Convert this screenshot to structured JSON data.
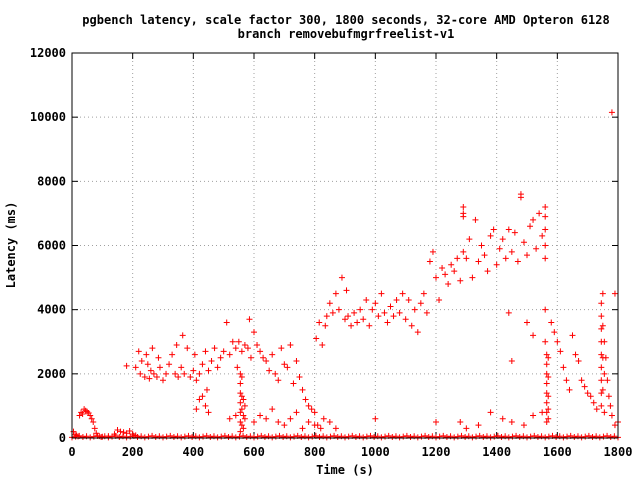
{
  "chart_data": {
    "type": "scatter",
    "title": "pgbench latency, scale factor 300, 1800 seconds, 32-core AMD Opteron 6128",
    "subtitle": "branch removebufmgrfreelist-v1",
    "xlabel": "Time (s)",
    "ylabel": "Latency (ms)",
    "xlim": [
      0,
      1800
    ],
    "ylim": [
      0,
      12000
    ],
    "xticks": [
      "0",
      "200",
      "400",
      "600",
      "800",
      "1000",
      "1200",
      "1400",
      "1600",
      "1800"
    ],
    "yticks": [
      "0",
      "2000",
      "4000",
      "6000",
      "8000",
      "10000",
      "12000"
    ],
    "grid": true,
    "marker": "+",
    "color": "#ff0000",
    "points": [
      [
        5,
        200
      ],
      [
        10,
        100
      ],
      [
        15,
        80
      ],
      [
        20,
        50
      ],
      [
        25,
        700
      ],
      [
        30,
        800
      ],
      [
        35,
        750
      ],
      [
        40,
        900
      ],
      [
        45,
        850
      ],
      [
        50,
        820
      ],
      [
        55,
        780
      ],
      [
        60,
        700
      ],
      [
        65,
        600
      ],
      [
        70,
        500
      ],
      [
        75,
        300
      ],
      [
        80,
        150
      ],
      [
        90,
        60
      ],
      [
        100,
        40
      ],
      [
        120,
        60
      ],
      [
        140,
        120
      ],
      [
        150,
        250
      ],
      [
        160,
        200
      ],
      [
        170,
        180
      ],
      [
        180,
        150
      ],
      [
        190,
        220
      ],
      [
        200,
        120
      ],
      [
        210,
        80
      ],
      [
        180,
        2250
      ],
      [
        210,
        2200
      ],
      [
        220,
        2700
      ],
      [
        225,
        2000
      ],
      [
        230,
        2400
      ],
      [
        240,
        1900
      ],
      [
        245,
        2600
      ],
      [
        250,
        2300
      ],
      [
        255,
        1850
      ],
      [
        260,
        2100
      ],
      [
        265,
        2800
      ],
      [
        270,
        2000
      ],
      [
        280,
        1900
      ],
      [
        285,
        2500
      ],
      [
        290,
        2200
      ],
      [
        300,
        1800
      ],
      [
        310,
        2000
      ],
      [
        320,
        2300
      ],
      [
        330,
        2600
      ],
      [
        340,
        2000
      ],
      [
        345,
        2900
      ],
      [
        350,
        1900
      ],
      [
        360,
        2200
      ],
      [
        365,
        3200
      ],
      [
        370,
        2000
      ],
      [
        380,
        2800
      ],
      [
        390,
        1900
      ],
      [
        400,
        2100
      ],
      [
        405,
        2600
      ],
      [
        410,
        1800
      ],
      [
        420,
        2000
      ],
      [
        430,
        2300
      ],
      [
        440,
        2700
      ],
      [
        445,
        1500
      ],
      [
        450,
        2100
      ],
      [
        460,
        2400
      ],
      [
        470,
        2800
      ],
      [
        480,
        2200
      ],
      [
        490,
        2500
      ],
      [
        500,
        2700
      ],
      [
        510,
        3600
      ],
      [
        520,
        2600
      ],
      [
        530,
        3000
      ],
      [
        540,
        2800
      ],
      [
        545,
        2200
      ],
      [
        550,
        3000
      ],
      [
        560,
        2700
      ],
      [
        570,
        2900
      ],
      [
        580,
        2800
      ],
      [
        585,
        3700
      ],
      [
        590,
        2500
      ],
      [
        600,
        3300
      ],
      [
        610,
        2900
      ],
      [
        620,
        2700
      ],
      [
        630,
        2500
      ],
      [
        640,
        2400
      ],
      [
        650,
        2100
      ],
      [
        660,
        2600
      ],
      [
        670,
        2000
      ],
      [
        680,
        1800
      ],
      [
        690,
        2800
      ],
      [
        700,
        2300
      ],
      [
        710,
        2200
      ],
      [
        720,
        2900
      ],
      [
        730,
        1700
      ],
      [
        740,
        2400
      ],
      [
        750,
        1900
      ],
      [
        760,
        1500
      ],
      [
        770,
        1200
      ],
      [
        780,
        1000
      ],
      [
        790,
        900
      ],
      [
        800,
        800
      ],
      [
        810,
        400
      ],
      [
        820,
        300
      ],
      [
        410,
        900
      ],
      [
        420,
        1200
      ],
      [
        430,
        1300
      ],
      [
        440,
        1000
      ],
      [
        450,
        800
      ],
      [
        520,
        600
      ],
      [
        540,
        700
      ],
      [
        555,
        200
      ],
      [
        555,
        500
      ],
      [
        555,
        800
      ],
      [
        555,
        1100
      ],
      [
        555,
        1400
      ],
      [
        555,
        1700
      ],
      [
        555,
        2000
      ],
      [
        560,
        400
      ],
      [
        560,
        900
      ],
      [
        560,
        1300
      ],
      [
        560,
        1900
      ],
      [
        565,
        300
      ],
      [
        565,
        700
      ],
      [
        565,
        1200
      ],
      [
        570,
        600
      ],
      [
        570,
        1000
      ],
      [
        600,
        500
      ],
      [
        620,
        700
      ],
      [
        640,
        600
      ],
      [
        660,
        900
      ],
      [
        680,
        500
      ],
      [
        700,
        400
      ],
      [
        720,
        600
      ],
      [
        740,
        800
      ],
      [
        760,
        300
      ],
      [
        780,
        500
      ],
      [
        800,
        400
      ],
      [
        805,
        3100
      ],
      [
        815,
        3600
      ],
      [
        825,
        2900
      ],
      [
        835,
        3500
      ],
      [
        840,
        3800
      ],
      [
        850,
        4200
      ],
      [
        860,
        3900
      ],
      [
        870,
        4500
      ],
      [
        880,
        4000
      ],
      [
        890,
        5000
      ],
      [
        900,
        3700
      ],
      [
        905,
        4600
      ],
      [
        910,
        3800
      ],
      [
        920,
        3500
      ],
      [
        930,
        3900
      ],
      [
        940,
        3600
      ],
      [
        950,
        4000
      ],
      [
        960,
        3700
      ],
      [
        970,
        4300
      ],
      [
        980,
        3500
      ],
      [
        990,
        4000
      ],
      [
        1000,
        4200
      ],
      [
        1010,
        3800
      ],
      [
        1020,
        4500
      ],
      [
        1030,
        3900
      ],
      [
        1040,
        3600
      ],
      [
        1050,
        4100
      ],
      [
        1060,
        3800
      ],
      [
        1070,
        4300
      ],
      [
        1080,
        3900
      ],
      [
        1090,
        4500
      ],
      [
        1100,
        3700
      ],
      [
        1110,
        4300
      ],
      [
        1120,
        3500
      ],
      [
        1130,
        4000
      ],
      [
        1140,
        3300
      ],
      [
        1150,
        4200
      ],
      [
        1160,
        4500
      ],
      [
        1170,
        3900
      ],
      [
        1180,
        5500
      ],
      [
        1190,
        5800
      ],
      [
        1200,
        5000
      ],
      [
        1210,
        4300
      ],
      [
        1220,
        5300
      ],
      [
        1230,
        5100
      ],
      [
        1240,
        4800
      ],
      [
        1250,
        5400
      ],
      [
        1260,
        5200
      ],
      [
        1270,
        5600
      ],
      [
        1280,
        4900
      ],
      [
        1290,
        5800
      ],
      [
        1300,
        5600
      ],
      [
        1310,
        6200
      ],
      [
        1320,
        5000
      ],
      [
        1330,
        6800
      ],
      [
        1340,
        5500
      ],
      [
        1350,
        6000
      ],
      [
        1360,
        5700
      ],
      [
        1370,
        5200
      ],
      [
        1380,
        6300
      ],
      [
        1390,
        6500
      ],
      [
        1400,
        5400
      ],
      [
        1410,
        5900
      ],
      [
        1420,
        6200
      ],
      [
        1430,
        5600
      ],
      [
        1440,
        6500
      ],
      [
        1450,
        5800
      ],
      [
        1460,
        6400
      ],
      [
        1470,
        5500
      ],
      [
        1480,
        7500
      ],
      [
        1490,
        6100
      ],
      [
        1500,
        5700
      ],
      [
        1510,
        6600
      ],
      [
        1520,
        6800
      ],
      [
        1530,
        5900
      ],
      [
        1540,
        7000
      ],
      [
        1550,
        6300
      ],
      [
        1290,
        7200
      ],
      [
        1290,
        7000
      ],
      [
        1290,
        6900
      ],
      [
        1480,
        7600
      ],
      [
        830,
        600
      ],
      [
        850,
        500
      ],
      [
        870,
        300
      ],
      [
        1000,
        600
      ],
      [
        1200,
        500
      ],
      [
        1280,
        500
      ],
      [
        1300,
        300
      ],
      [
        1340,
        400
      ],
      [
        1380,
        800
      ],
      [
        1420,
        600
      ],
      [
        1450,
        500
      ],
      [
        1490,
        400
      ],
      [
        1520,
        700
      ],
      [
        1550,
        800
      ],
      [
        1440,
        3900
      ],
      [
        1450,
        2400
      ],
      [
        1500,
        3600
      ],
      [
        1520,
        3200
      ],
      [
        1560,
        6900
      ],
      [
        1560,
        7200
      ],
      [
        1560,
        6500
      ],
      [
        1560,
        6000
      ],
      [
        1560,
        5600
      ],
      [
        1560,
        4000
      ],
      [
        1560,
        3000
      ],
      [
        1565,
        2600
      ],
      [
        1565,
        2300
      ],
      [
        1565,
        2000
      ],
      [
        1565,
        1700
      ],
      [
        1565,
        1400
      ],
      [
        1565,
        1100
      ],
      [
        1565,
        800
      ],
      [
        1565,
        500
      ],
      [
        1570,
        2500
      ],
      [
        1570,
        1900
      ],
      [
        1570,
        1300
      ],
      [
        1570,
        900
      ],
      [
        1570,
        600
      ],
      [
        1580,
        3600
      ],
      [
        1590,
        3300
      ],
      [
        1600,
        3000
      ],
      [
        1610,
        2700
      ],
      [
        1620,
        2200
      ],
      [
        1630,
        1800
      ],
      [
        1640,
        1500
      ],
      [
        1650,
        3200
      ],
      [
        1660,
        2600
      ],
      [
        1670,
        2400
      ],
      [
        1680,
        1800
      ],
      [
        1690,
        1600
      ],
      [
        1700,
        1400
      ],
      [
        1710,
        1300
      ],
      [
        1720,
        1100
      ],
      [
        1730,
        900
      ],
      [
        1745,
        4200
      ],
      [
        1745,
        3800
      ],
      [
        1745,
        3400
      ],
      [
        1745,
        3000
      ],
      [
        1745,
        2600
      ],
      [
        1745,
        2200
      ],
      [
        1745,
        1800
      ],
      [
        1745,
        1400
      ],
      [
        1745,
        1000
      ],
      [
        1750,
        4500
      ],
      [
        1750,
        3500
      ],
      [
        1750,
        2500
      ],
      [
        1750,
        1500
      ],
      [
        1755,
        3000
      ],
      [
        1755,
        2000
      ],
      [
        1755,
        800
      ],
      [
        1760,
        2500
      ],
      [
        1765,
        1800
      ],
      [
        1770,
        1300
      ],
      [
        1775,
        1000
      ],
      [
        1780,
        700
      ],
      [
        1790,
        400
      ],
      [
        1800,
        500
      ],
      [
        1790,
        4500
      ],
      [
        1780,
        10150
      ]
    ]
  }
}
